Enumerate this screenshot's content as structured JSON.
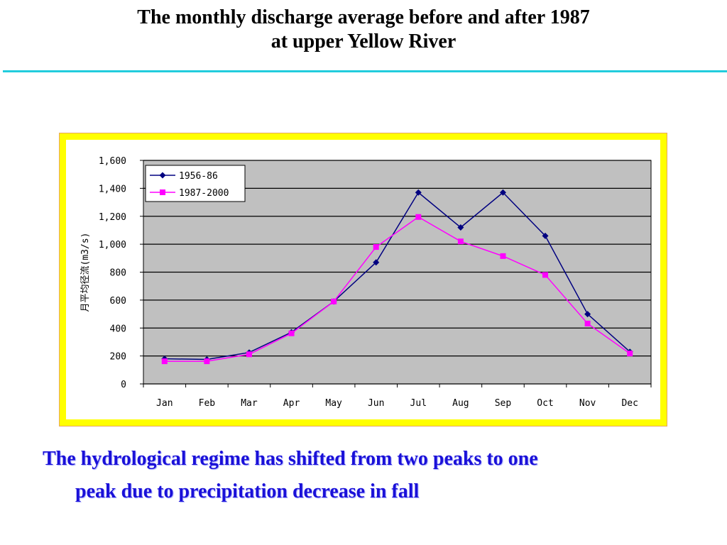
{
  "slide": {
    "title_line1": "The monthly discharge average before and after 1987",
    "title_line2": "at upper Yellow River",
    "caption_line1": "The hydrological regime has shifted from two peaks to one",
    "caption_line2": "peak due to precipitation decrease in fall",
    "accent_color": "#22ccdd",
    "caption_color": "#1a10d8"
  },
  "chart_data": {
    "type": "line",
    "title": "",
    "xlabel": "",
    "ylabel": "月平均径流(m3/s)",
    "categories": [
      "Jan",
      "Feb",
      "Mar",
      "Apr",
      "May",
      "Jun",
      "Jul",
      "Aug",
      "Sep",
      "Oct",
      "Nov",
      "Dec"
    ],
    "ylim": [
      0,
      1600
    ],
    "yticks": [
      0,
      200,
      400,
      600,
      800,
      1000,
      1200,
      1400,
      1600
    ],
    "ytick_labels": [
      "0",
      "200",
      "400",
      "600",
      "800",
      "1,000",
      "1,200",
      "1,400",
      "1,600"
    ],
    "grid": true,
    "plot_background": "#c0c0c0",
    "legend_position": "top-left",
    "series": [
      {
        "name": "1956-86",
        "color": "#000080",
        "marker": "diamond",
        "values": [
          180,
          175,
          225,
          370,
          590,
          870,
          1370,
          1120,
          1370,
          1060,
          500,
          230
        ]
      },
      {
        "name": "1987-2000",
        "color": "#ff00ff",
        "marker": "square",
        "values": [
          162,
          162,
          212,
          362,
          590,
          980,
          1195,
          1020,
          915,
          780,
          432,
          218
        ]
      }
    ]
  }
}
